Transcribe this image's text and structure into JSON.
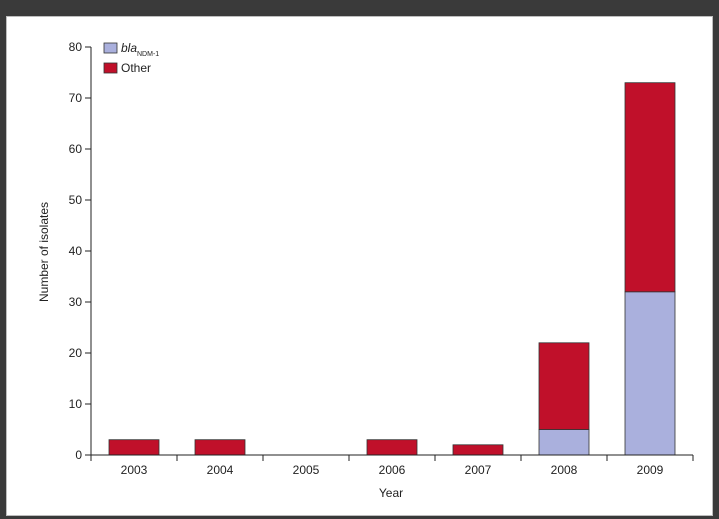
{
  "chart_data": {
    "type": "bar",
    "stacked": true,
    "title": "",
    "xlabel": "Year",
    "ylabel": "Number of isolates",
    "ylim": [
      0,
      80
    ],
    "yticks": [
      0,
      10,
      20,
      30,
      40,
      50,
      60,
      70,
      80
    ],
    "categories": [
      "2003",
      "2004",
      "2005",
      "2006",
      "2007",
      "2008",
      "2009"
    ],
    "series": [
      {
        "name": "bla",
        "name_subscript": "NDM-1",
        "color": "#aab0dd",
        "values": [
          0,
          0,
          0,
          0,
          0,
          5,
          32
        ]
      },
      {
        "name": "Other",
        "color": "#c0102a",
        "values": [
          3,
          3,
          0,
          3,
          2,
          17,
          41
        ]
      }
    ],
    "legend_position": "top-left",
    "grid": false
  }
}
